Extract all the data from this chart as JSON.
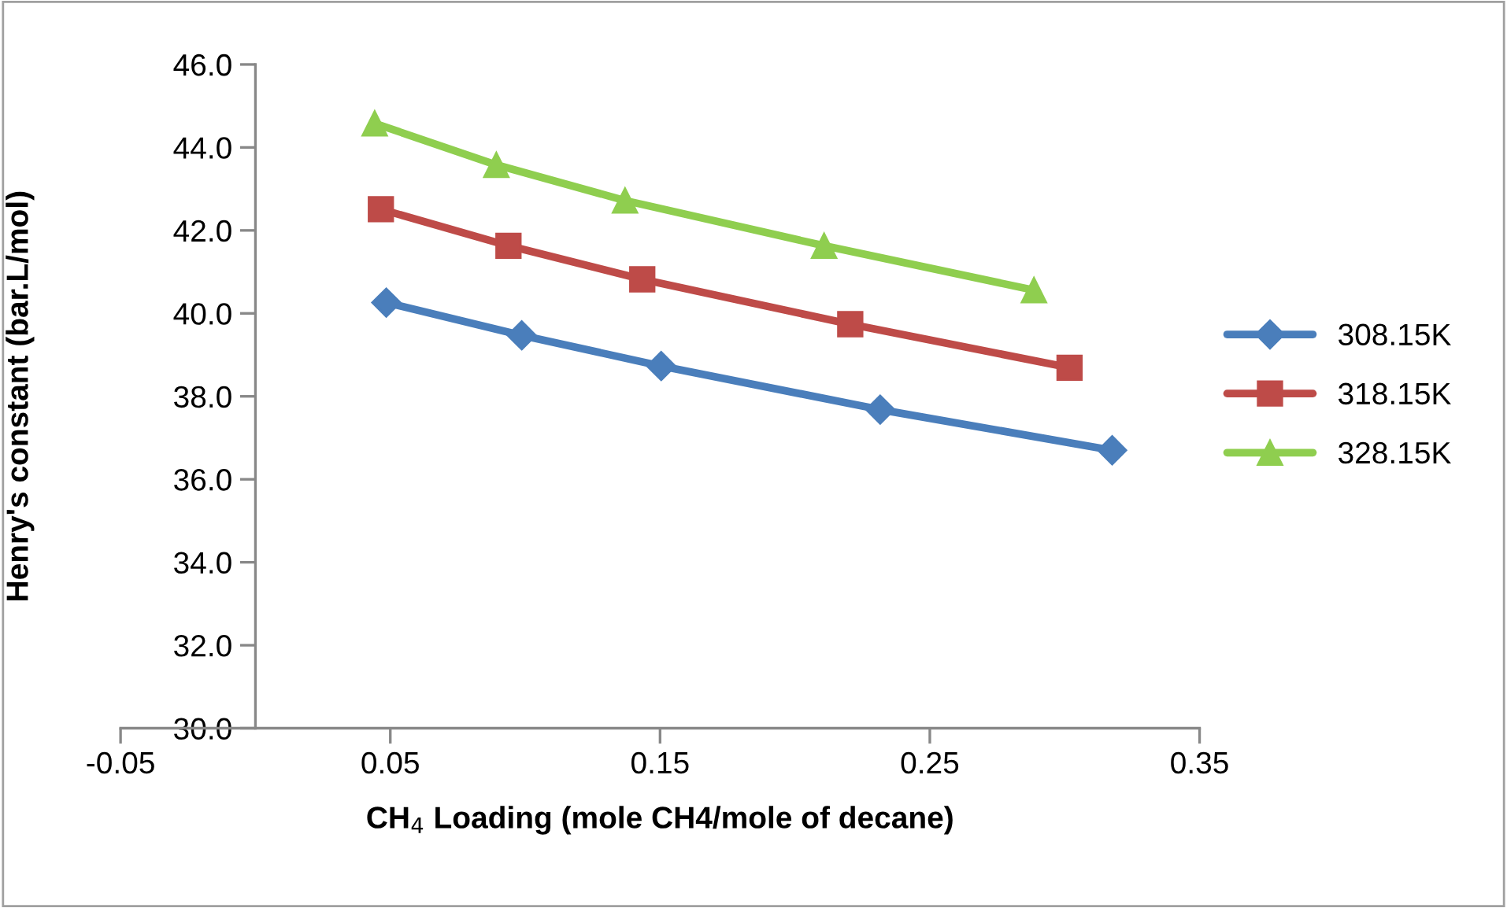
{
  "chart_data": {
    "type": "line",
    "xlabel": "CH$_{4}$ Loading (mole CH4/mole of decane)",
    "ylabel": "Henry's constant (bar.L/mol)",
    "series": [
      {
        "name": "308.15K",
        "color": "#4a7ebb",
        "marker": "diamond",
        "x": [
          0.0485,
          0.0987,
          0.1504,
          0.2316,
          0.3176
        ],
        "values": [
          40.26,
          39.47,
          38.73,
          37.68,
          36.7
        ]
      },
      {
        "name": "318.15K",
        "color": "#be4b48",
        "marker": "square",
        "x": [
          0.0465,
          0.0938,
          0.1434,
          0.2205,
          0.3018
        ],
        "values": [
          42.51,
          41.63,
          40.82,
          39.74,
          38.69
        ]
      },
      {
        "name": "328.15K",
        "color": "#8fce4f",
        "marker": "triangle",
        "x": [
          0.0442,
          0.0893,
          0.137,
          0.2108,
          0.2886
        ],
        "values": [
          44.58,
          43.58,
          42.72,
          41.63,
          40.56
        ]
      }
    ],
    "xlim": [
      -0.05,
      0.35
    ],
    "xticks": [
      -0.05,
      0.05,
      0.15,
      0.25,
      0.35
    ],
    "ylim": [
      30,
      46
    ],
    "yticks": [
      {
        "value": 30,
        "label": "30.0"
      },
      {
        "value": 32,
        "label": "32.0"
      },
      {
        "value": 34,
        "label": "34.0"
      },
      {
        "value": 36,
        "label": "36.0"
      },
      {
        "value": 38,
        "label": "38.0"
      },
      {
        "value": 40,
        "label": "40.0"
      },
      {
        "value": 42,
        "label": "42.0"
      },
      {
        "value": 44,
        "label": "44.0"
      },
      {
        "value": 46,
        "label": "46.0"
      }
    ],
    "grid": false,
    "legend": "right",
    "line_style": "solid"
  }
}
